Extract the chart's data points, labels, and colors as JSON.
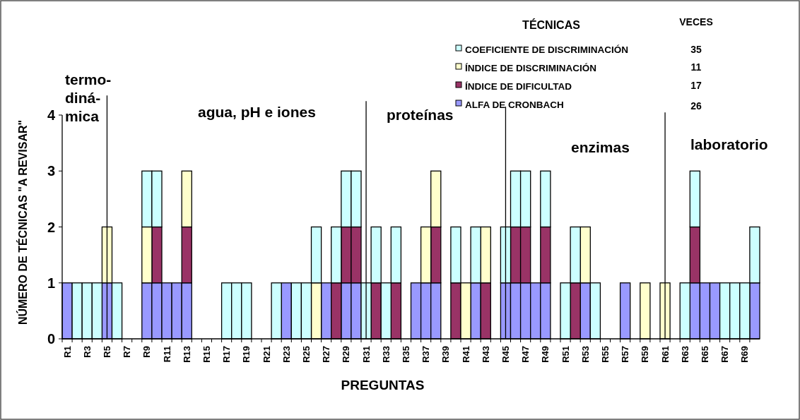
{
  "chart_data": {
    "type": "bar",
    "stacked": true,
    "xlabel": "PREGUNTAS",
    "ylabel": "NÚMERO DE TÉCNICAS \"A REVISAR\"",
    "legend_title": "TÉCNICAS",
    "legend": "top right",
    "grid": false,
    "ylim": [
      0,
      4
    ],
    "yticks": [
      0,
      1,
      2,
      3,
      4
    ],
    "categories": [
      "R1",
      null,
      "R3",
      null,
      "R5",
      null,
      "R7",
      null,
      "R9",
      null,
      "R11",
      null,
      "R13",
      null,
      "R15",
      null,
      "R17",
      null,
      "R19",
      null,
      "R21",
      null,
      "R23",
      null,
      "R25",
      null,
      "R27",
      null,
      "R29",
      null,
      "R31",
      null,
      "R33",
      null,
      "R35",
      null,
      "R37",
      null,
      "R39",
      null,
      "R41",
      null,
      "R43",
      null,
      "R45",
      null,
      "R47",
      null,
      "R49",
      null,
      "R51",
      null,
      "R53",
      null,
      "R55",
      null,
      "R57",
      null,
      "R59",
      null,
      "R61",
      null,
      "R63",
      null,
      "R65",
      null,
      "R67",
      null,
      "R69",
      null
    ],
    "series": [
      {
        "name": "ALFA DE CRONBACH",
        "color": "#9999ff",
        "values": [
          1,
          0,
          0,
          0,
          1,
          0,
          0,
          0,
          1,
          1,
          1,
          1,
          1,
          0,
          0,
          0,
          0,
          0,
          0,
          0,
          0,
          0,
          1,
          0,
          0,
          0,
          1,
          0,
          1,
          1,
          0,
          0,
          0,
          0,
          0,
          1,
          1,
          1,
          0,
          0,
          0,
          1,
          0,
          0,
          1,
          1,
          1,
          1,
          1,
          0,
          0,
          0,
          1,
          0,
          0,
          0,
          1,
          0,
          0,
          0,
          0,
          0,
          0,
          1,
          1,
          1,
          0,
          0,
          0,
          1
        ]
      },
      {
        "name": "ÍNDICE DE DIFICULTAD",
        "color": "#993366",
        "values": [
          0,
          0,
          0,
          0,
          0,
          0,
          0,
          0,
          0,
          1,
          0,
          0,
          1,
          0,
          0,
          0,
          0,
          0,
          0,
          0,
          0,
          0,
          0,
          0,
          0,
          0,
          0,
          1,
          1,
          1,
          0,
          1,
          0,
          1,
          0,
          0,
          0,
          1,
          0,
          1,
          0,
          0,
          1,
          0,
          0,
          1,
          1,
          0,
          1,
          0,
          0,
          1,
          0,
          0,
          0,
          0,
          0,
          0,
          0,
          0,
          0,
          0,
          0,
          1,
          0,
          0,
          0,
          0,
          0,
          0
        ]
      },
      {
        "name": "ÍNDICE DE DISCRIMINACIÓN",
        "color": "#ffffcc",
        "values": [
          0,
          0,
          0,
          0,
          1,
          0,
          0,
          0,
          1,
          0,
          0,
          0,
          1,
          0,
          0,
          0,
          0,
          0,
          0,
          0,
          0,
          0,
          0,
          0,
          0,
          1,
          0,
          0,
          0,
          0,
          0,
          0,
          0,
          0,
          0,
          0,
          1,
          1,
          0,
          0,
          1,
          0,
          1,
          0,
          0,
          0,
          0,
          0,
          0,
          0,
          0,
          0,
          1,
          0,
          0,
          0,
          0,
          0,
          1,
          0,
          1,
          0,
          0,
          0,
          0,
          0,
          0,
          0,
          0,
          0
        ]
      },
      {
        "name": "COEFICIENTE DE DISCRIMINACIÓN",
        "color": "#ccffff",
        "values": [
          0,
          1,
          1,
          1,
          0,
          1,
          0,
          0,
          1,
          1,
          0,
          0,
          0,
          0,
          0,
          0,
          1,
          1,
          1,
          0,
          0,
          1,
          0,
          1,
          1,
          1,
          0,
          1,
          1,
          1,
          1,
          1,
          1,
          1,
          0,
          0,
          0,
          0,
          0,
          1,
          0,
          1,
          0,
          0,
          1,
          1,
          1,
          0,
          1,
          0,
          1,
          1,
          0,
          1,
          0,
          0,
          0,
          0,
          0,
          0,
          0,
          0,
          1,
          1,
          0,
          0,
          1,
          1,
          1,
          1
        ]
      }
    ],
    "ref_lines": [
      {
        "axis": "x",
        "value": "R5"
      },
      {
        "axis": "x",
        "value": "R31"
      },
      {
        "axis": "x",
        "value": "R45"
      },
      {
        "axis": "x",
        "value": "R61"
      }
    ],
    "annotations": [
      "termo-\ndiná-\nmica",
      "agua, pH e iones",
      "proteínas",
      "enzimas",
      "laboratorio",
      "VECES",
      "26",
      "17",
      "11",
      "35"
    ]
  }
}
